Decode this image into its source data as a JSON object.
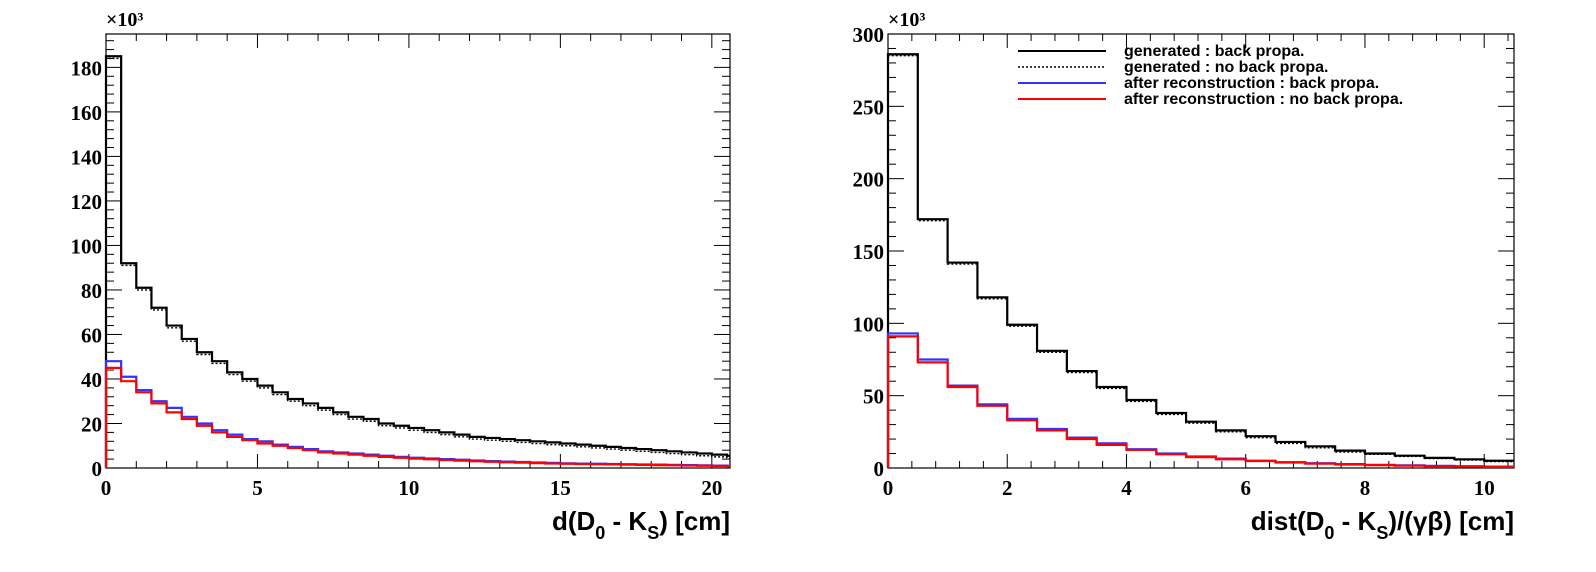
{
  "chart_data": [
    {
      "type": "line",
      "step": true,
      "xlabel": "d(D_0 - K_S) [cm]",
      "xlabel_parts": {
        "pre": "d(D",
        "sub1": "0",
        "mid": " - K",
        "sub2": "S",
        "post": ") [cm]"
      },
      "ylabel": "",
      "y_exponent": "×10³",
      "xlim": [
        0,
        20.6
      ],
      "ylim": [
        0,
        195
      ],
      "x_ticks": [
        0,
        5,
        10,
        15,
        20
      ],
      "y_ticks": [
        0,
        20,
        40,
        60,
        80,
        100,
        120,
        140,
        160,
        180
      ],
      "bin_width": 0.5,
      "grid": false,
      "series": [
        {
          "color": "#000000",
          "values": [
            185,
            92,
            81,
            72,
            64,
            58,
            52,
            48,
            43,
            40,
            37,
            34,
            31,
            29,
            27,
            25,
            23,
            22,
            20,
            19,
            18,
            17,
            16,
            15,
            14,
            13.5,
            13,
            12.5,
            12,
            11.5,
            11,
            10.5,
            10,
            9.5,
            9,
            8.5,
            8,
            7.5,
            7,
            6.5,
            6,
            5.5
          ]
        },
        {
          "color": "#000000",
          "dotted": true,
          "values": [
            184,
            91,
            80,
            71,
            63,
            57,
            51,
            47,
            42,
            39,
            36,
            33,
            30,
            28,
            26,
            24,
            22,
            21,
            19,
            18,
            17,
            16,
            15,
            14,
            13,
            12.5,
            12,
            11.5,
            11,
            10.5,
            10,
            9.5,
            9,
            8.5,
            8,
            7.5,
            7,
            6.5,
            6,
            5.5,
            5,
            4.5
          ]
        },
        {
          "color": "#3333ff",
          "values": [
            48,
            41,
            35,
            30,
            27,
            23,
            20,
            17,
            15,
            13,
            12,
            10.5,
            9.5,
            8.5,
            7.5,
            7,
            6.5,
            6,
            5.5,
            5,
            4.6,
            4.3,
            4,
            3.7,
            3.4,
            3.1,
            2.9,
            2.7,
            2.5,
            2.3,
            2.1,
            2,
            1.9,
            1.8,
            1.7,
            1.6,
            1.5,
            1.4,
            1.3,
            1.2,
            1.1,
            1
          ]
        },
        {
          "color": "#ff0000",
          "values": [
            45,
            39,
            34,
            29,
            25,
            22,
            19,
            16,
            14,
            12.5,
            11,
            10,
            9,
            8,
            7,
            6.5,
            6,
            5.5,
            5,
            4.6,
            4.2,
            3.9,
            3.6,
            3.3,
            3,
            2.8,
            2.6,
            2.4,
            2.2,
            2,
            1.9,
            1.8,
            1.7,
            1.6,
            1.5,
            1.4,
            1.3,
            1.2,
            1.1,
            1,
            0.9,
            0.8
          ]
        }
      ]
    },
    {
      "type": "line",
      "step": true,
      "xlabel": "dist(D_0 - K_S)/(γβ) [cm]",
      "xlabel_parts": {
        "pre": "dist(D",
        "sub1": "0",
        "mid": " - K",
        "sub2": "S",
        "post": ")/(γβ) [cm]"
      },
      "ylabel": "",
      "y_exponent": "×10³",
      "xlim": [
        0,
        10.5
      ],
      "ylim": [
        0,
        300
      ],
      "x_ticks": [
        0,
        2,
        4,
        6,
        8,
        10
      ],
      "y_ticks": [
        0,
        50,
        100,
        150,
        200,
        250,
        300
      ],
      "bin_width": 0.5,
      "grid": false,
      "legend": {
        "position": "top-right",
        "entries": [
          {
            "label": "generated : back propa.",
            "color": "#000000",
            "style": "solid"
          },
          {
            "label": "generated : no back propa.",
            "color": "#000000",
            "style": "dotted"
          },
          {
            "label": "after reconstruction : back propa.",
            "color": "#3333ff",
            "style": "solid"
          },
          {
            "label": "after reconstruction : no back propa.",
            "color": "#ff0000",
            "style": "solid"
          }
        ]
      },
      "series": [
        {
          "name": "generated : back propa.",
          "color": "#000000",
          "values": [
            286,
            172,
            142,
            118,
            99,
            81,
            67,
            56,
            47,
            38,
            32,
            26,
            22,
            18,
            15,
            12,
            10,
            8.5,
            7,
            6,
            5
          ]
        },
        {
          "name": "generated : no back propa.",
          "color": "#000000",
          "dotted": true,
          "values": [
            285,
            171,
            141,
            117,
            98,
            80,
            66,
            55,
            46,
            37,
            31,
            25,
            21,
            17,
            14,
            11,
            9.5,
            8,
            6.5,
            5.5,
            4.5
          ]
        },
        {
          "name": "after reconstruction : back propa.",
          "color": "#3333ff",
          "values": [
            93,
            75,
            57,
            44,
            34,
            27,
            21,
            17,
            13,
            10,
            8,
            6.5,
            5,
            4,
            3.3,
            2.7,
            2.2,
            1.8,
            1.5,
            1.2,
            1
          ]
        },
        {
          "name": "after reconstruction : no back propa.",
          "color": "#ff0000",
          "values": [
            91,
            73,
            56,
            43,
            33,
            26,
            20,
            16,
            12.5,
            9.5,
            7.5,
            6,
            4.8,
            3.8,
            3,
            2.4,
            2,
            1.6,
            1.3,
            1,
            0.8
          ]
        }
      ]
    }
  ]
}
